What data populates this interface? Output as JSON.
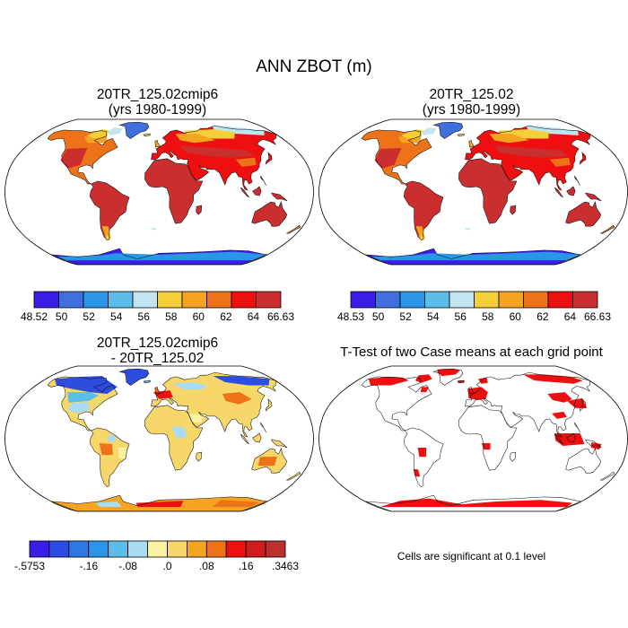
{
  "figure": {
    "title": "ANN ZBOT (m)"
  },
  "panels": [
    {
      "title": "20TR_125.02cmip6",
      "subtitle": "(yrs 1980-1999)"
    },
    {
      "title": "20TR_125.02",
      "subtitle": "(yrs 1980-1999)"
    },
    {
      "title": "20TR_125.02cmip6",
      "subtitle": "- 20TR_125.02"
    },
    {
      "title": "T-Test of two Case means at each grid point",
      "note": "Cells are significant at 0.1 level"
    }
  ],
  "colorbars": [
    {
      "labels": [
        "48.52",
        "50",
        "52",
        "54",
        "56",
        "58",
        "60",
        "62",
        "64",
        "66.63"
      ],
      "colors": [
        "#3a1ee8",
        "#3f6fdc",
        "#2b96e8",
        "#5cbde8",
        "#c2e4f0",
        "#f4cf3a",
        "#f5a422",
        "#ee7218",
        "#ee1010",
        "#cb2e2e"
      ]
    },
    {
      "labels": [
        "48.53",
        "50",
        "52",
        "54",
        "56",
        "58",
        "60",
        "62",
        "64",
        "66.63"
      ],
      "colors": [
        "#3a1ee8",
        "#3f6fdc",
        "#2b96e8",
        "#5cbde8",
        "#c2e4f0",
        "#f4cf3a",
        "#f5a422",
        "#ee7218",
        "#ee1010",
        "#cb2e2e"
      ]
    },
    {
      "labels": [
        "-.5753",
        "-.16",
        "-.08",
        ".0",
        ".08",
        ".16",
        ".3463"
      ],
      "colors": [
        "#3a1ee8",
        "#2d4ce0",
        "#2b78e4",
        "#2b96e8",
        "#5cbde8",
        "#a9dcf2",
        "#fbf1a5",
        "#f8d76a",
        "#f5a422",
        "#ee7218",
        "#ee1010",
        "#cf1d1d",
        "#bb2f2f"
      ]
    }
  ],
  "chart_data": [
    {
      "type": "heatmap",
      "title": "20TR_125.02cmip6",
      "subtitle": "(yrs 1980-1999)",
      "variable": "ANN ZBOT (m)",
      "projection": "Robinson",
      "colorbar_range": [
        48.52,
        66.63
      ],
      "colorbar_ticks": [
        48.52,
        50,
        52,
        54,
        56,
        58,
        60,
        62,
        64,
        66.63
      ]
    },
    {
      "type": "heatmap",
      "title": "20TR_125.02",
      "subtitle": "(yrs 1980-1999)",
      "variable": "ANN ZBOT (m)",
      "projection": "Robinson",
      "colorbar_range": [
        48.53,
        66.63
      ],
      "colorbar_ticks": [
        48.53,
        50,
        52,
        54,
        56,
        58,
        60,
        62,
        64,
        66.63
      ]
    },
    {
      "type": "heatmap",
      "title": "20TR_125.02cmip6",
      "subtitle": "- 20TR_125.02",
      "variable": "ANN ZBOT (m)",
      "projection": "Robinson",
      "colorbar_range": [
        -0.5753,
        0.3463
      ],
      "colorbar_ticks": [
        -0.5753,
        -0.16,
        -0.08,
        0.0,
        0.08,
        0.16,
        0.3463
      ]
    },
    {
      "type": "heatmap",
      "title": "T-Test of two Case means at each grid point",
      "note": "Cells are significant at 0.1 level",
      "projection": "Robinson",
      "significance_level": 0.1
    }
  ]
}
